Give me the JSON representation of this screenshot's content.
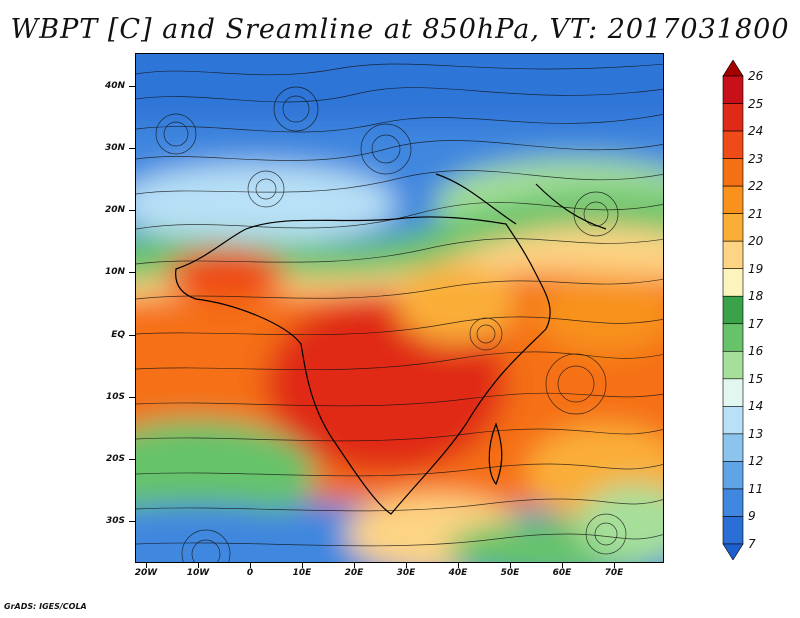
{
  "title": "WBPT [C] and Sreamline at 850hPa, VT: 2017031800",
  "footer": "GrADS: IGES/COLA",
  "lat_labels": [
    "40N",
    "30N",
    "20N",
    "10N",
    "EQ",
    "10S",
    "20S",
    "30S"
  ],
  "lon_labels": [
    "20W",
    "10W",
    "0",
    "10E",
    "20E",
    "30E",
    "40E",
    "50E",
    "60E",
    "70E"
  ],
  "colorbar": {
    "levels": [
      "26",
      "25",
      "24",
      "23",
      "22",
      "21",
      "20",
      "19",
      "18",
      "17",
      "16",
      "15",
      "14",
      "13",
      "12",
      "11",
      "9",
      "7"
    ],
    "colors": [
      "#a50000",
      "#c8101a",
      "#e02a18",
      "#ef4a18",
      "#f56f14",
      "#f8921c",
      "#faae38",
      "#fdd484",
      "#fdf3bc",
      "#3aa34a",
      "#66c36a",
      "#a6df9a",
      "#e2f7f0",
      "#b8e0f6",
      "#8cc4ee",
      "#5ea4e6",
      "#3f87df",
      "#2b6fd6",
      "#1e5fd0"
    ]
  }
}
